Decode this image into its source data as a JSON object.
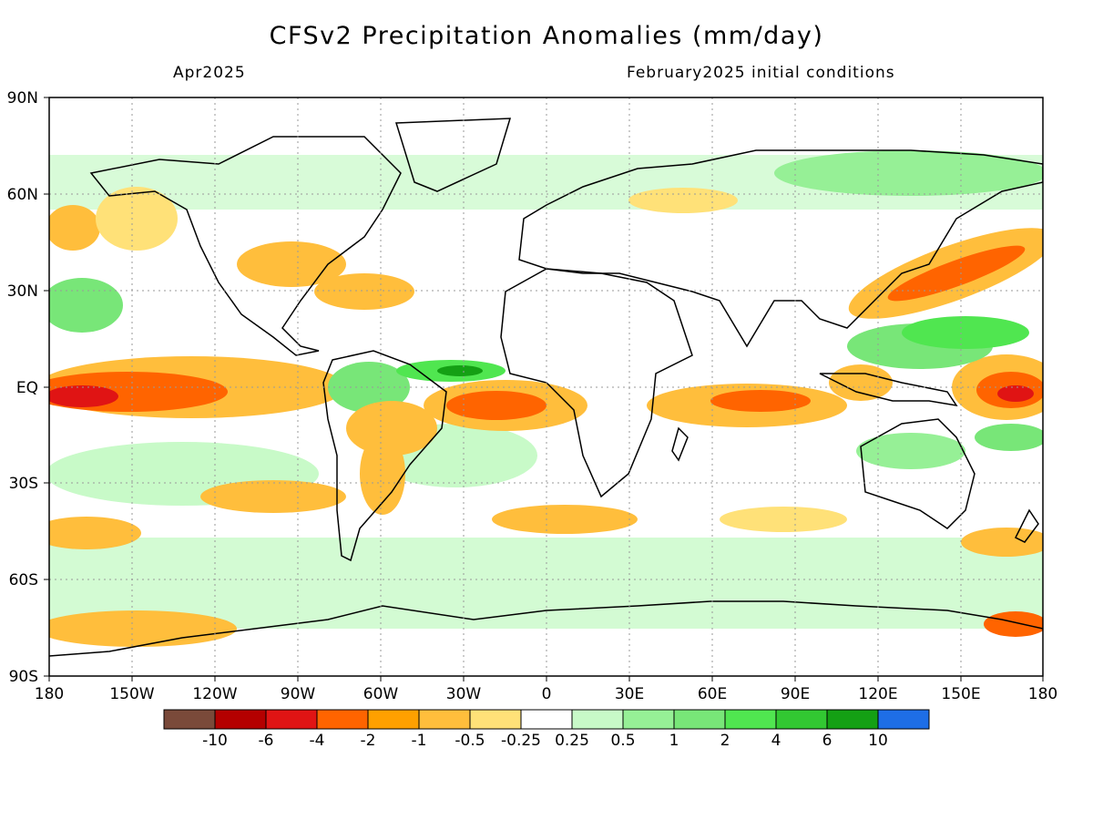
{
  "title": "CFSv2 Precipitation Anomalies (mm/day)",
  "subtitle_left": "Apr2025",
  "subtitle_right": "February2025 initial conditions",
  "lat_labels": [
    "90N",
    "60N",
    "30N",
    "EQ",
    "30S",
    "60S",
    "90S"
  ],
  "lon_labels": [
    "180",
    "150W",
    "120W",
    "90W",
    "60W",
    "30W",
    "0",
    "30E",
    "60E",
    "90E",
    "120E",
    "150E",
    "180"
  ],
  "colorbar": {
    "colors": [
      "#7a4a3a",
      "#b40000",
      "#e01414",
      "#ff6400",
      "#ffa000",
      "#ffbe3c",
      "#ffe178",
      "#ffffff",
      "#c8fac8",
      "#96f096",
      "#78e678",
      "#50e650",
      "#32c832",
      "#14a014",
      "#1e6ee6"
    ],
    "labels": [
      "-10",
      "-6",
      "-4",
      "-2",
      "-1",
      "-0.5",
      "-0.25",
      "0.25",
      "0.5",
      "1",
      "2",
      "4",
      "6",
      "10"
    ]
  }
}
